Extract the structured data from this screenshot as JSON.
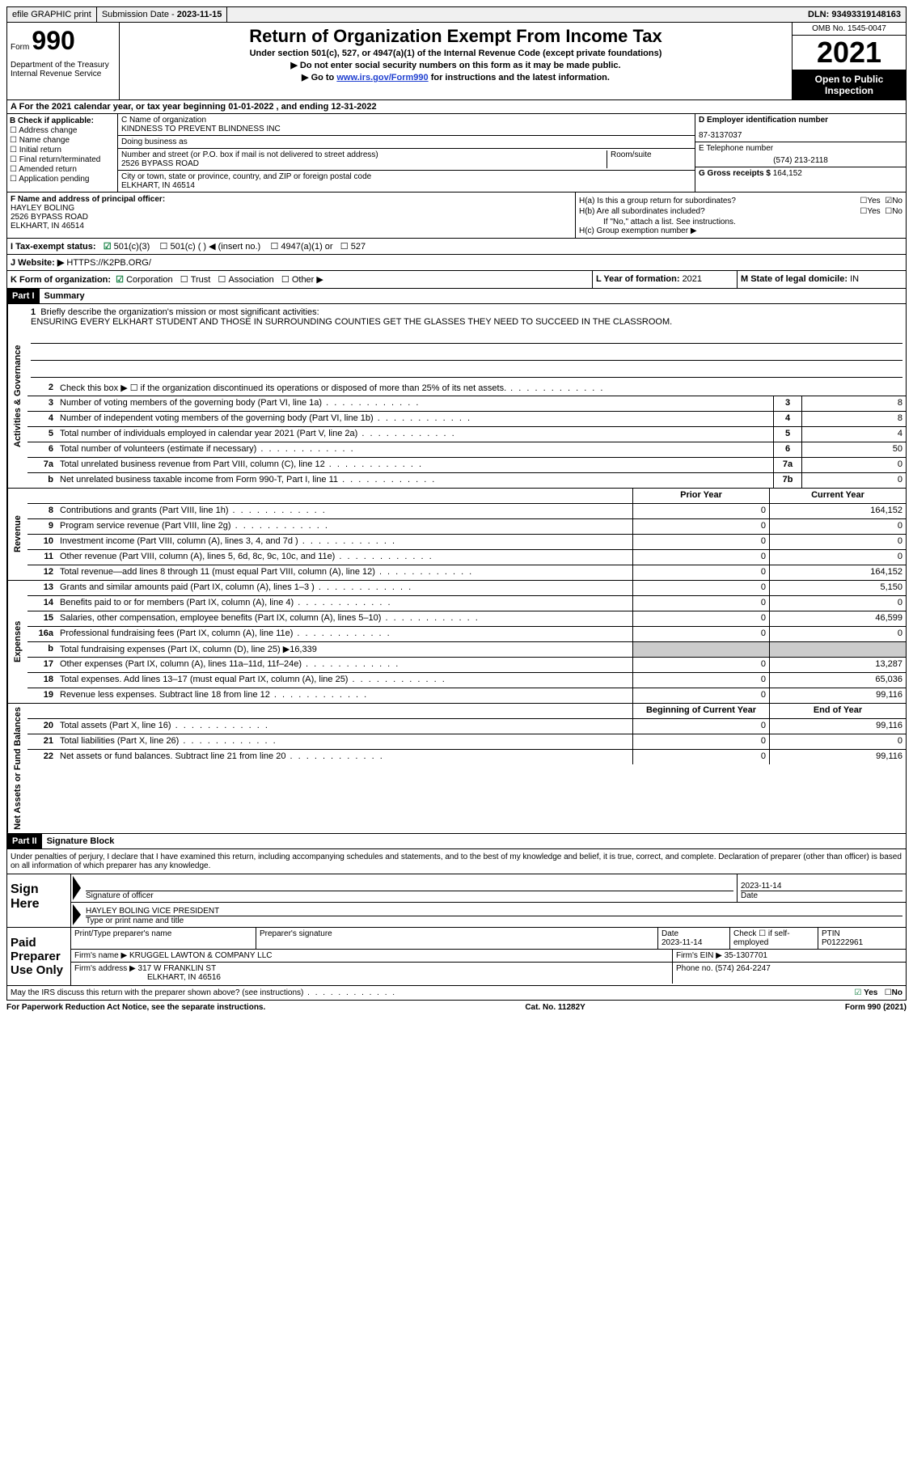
{
  "topbar": {
    "efile": "efile GRAPHIC print",
    "submission_label": "Submission Date - ",
    "submission_date": "2023-11-15",
    "dln_label": "DLN: ",
    "dln": "93493319148163"
  },
  "header": {
    "form_label": "Form",
    "form_no": "990",
    "dept": "Department of the Treasury\nInternal Revenue Service",
    "title": "Return of Organization Exempt From Income Tax",
    "subtitle1": "Under section 501(c), 527, or 4947(a)(1) of the Internal Revenue Code (except private foundations)",
    "subtitle2": "Do not enter social security numbers on this form as it may be made public.",
    "subtitle3_pre": "Go to ",
    "subtitle3_link": "www.irs.gov/Form990",
    "subtitle3_post": " for instructions and the latest information.",
    "omb": "OMB No. 1545-0047",
    "year": "2021",
    "open": "Open to Public Inspection"
  },
  "row_a": "A For the 2021 calendar year, or tax year beginning 01-01-2022  , and ending 12-31-2022",
  "col_b": {
    "label": "B Check if applicable:",
    "items": [
      "Address change",
      "Name change",
      "Initial return",
      "Final return/terminated",
      "Amended return",
      "Application pending"
    ]
  },
  "col_c": {
    "name_label": "C Name of organization",
    "name": "KINDNESS TO PREVENT BLINDNESS INC",
    "dba_label": "Doing business as",
    "dba": "",
    "street_label": "Number and street (or P.O. box if mail is not delivered to street address)",
    "street": "2526 BYPASS ROAD",
    "room_label": "Room/suite",
    "city_label": "City or town, state or province, country, and ZIP or foreign postal code",
    "city": "ELKHART, IN  46514"
  },
  "col_d": {
    "ein_label": "D Employer identification number",
    "ein": "87-3137037",
    "tel_label": "E Telephone number",
    "tel": "(574) 213-2118",
    "gross_label": "G Gross receipts $ ",
    "gross": "164,152"
  },
  "row_f": {
    "label": "F Name and address of principal officer:",
    "name": "HAYLEY BOLING",
    "street": "2526 BYPASS ROAD",
    "city": "ELKHART, IN  46514"
  },
  "row_h": {
    "ha": "H(a)  Is this a group return for subordinates?",
    "hb": "H(b)  Are all subordinates included?",
    "hb_note": "If \"No,\" attach a list. See instructions.",
    "hc": "H(c)  Group exemption number ▶",
    "yes": "Yes",
    "no": "No"
  },
  "row_i": {
    "label": "I  Tax-exempt status:",
    "opt1": "501(c)(3)",
    "opt2": "501(c) (  ) ◀ (insert no.)",
    "opt3": "4947(a)(1) or",
    "opt4": "527"
  },
  "row_j": {
    "label": "J  Website: ▶  ",
    "url": "HTTPS://K2PB.ORG/"
  },
  "row_k": {
    "label": "K Form of organization:",
    "corp": "Corporation",
    "trust": "Trust",
    "assoc": "Association",
    "other": "Other ▶"
  },
  "row_l": {
    "label": "L Year of formation: ",
    "val": "2021"
  },
  "row_m": {
    "label": "M State of legal domicile: ",
    "val": "IN"
  },
  "part1": {
    "bar": "Part I",
    "title": "Summary"
  },
  "mission": {
    "num": "1",
    "label": "Briefly describe the organization's mission or most significant activities:",
    "text": "ENSURING EVERY ELKHART STUDENT AND THOSE IN SURROUNDING COUNTIES GET THE GLASSES THEY NEED TO SUCCEED IN THE CLASSROOM."
  },
  "activities_label": "Activities & Governance",
  "revenue_label": "Revenue",
  "expenses_label": "Expenses",
  "netassets_label": "Net Assets or Fund Balances",
  "lines_top": [
    {
      "n": "2",
      "d": "Check this box ▶ ☐  if the organization discontinued its operations or disposed of more than 25% of its net assets."
    },
    {
      "n": "3",
      "d": "Number of voting members of the governing body (Part VI, line 1a)",
      "box": "3",
      "v": "8"
    },
    {
      "n": "4",
      "d": "Number of independent voting members of the governing body (Part VI, line 1b)",
      "box": "4",
      "v": "8"
    },
    {
      "n": "5",
      "d": "Total number of individuals employed in calendar year 2021 (Part V, line 2a)",
      "box": "5",
      "v": "4"
    },
    {
      "n": "6",
      "d": "Total number of volunteers (estimate if necessary)",
      "box": "6",
      "v": "50"
    },
    {
      "n": "7a",
      "d": "Total unrelated business revenue from Part VIII, column (C), line 12",
      "box": "7a",
      "v": "0"
    },
    {
      "n": "b",
      "d": "Net unrelated business taxable income from Form 990-T, Part I, line 11",
      "box": "7b",
      "v": "0"
    }
  ],
  "col_headers": {
    "prior": "Prior Year",
    "current": "Current Year",
    "beg": "Beginning of Current Year",
    "end": "End of Year"
  },
  "revenue_lines": [
    {
      "n": "8",
      "d": "Contributions and grants (Part VIII, line 1h)",
      "p": "0",
      "c": "164,152"
    },
    {
      "n": "9",
      "d": "Program service revenue (Part VIII, line 2g)",
      "p": "0",
      "c": "0"
    },
    {
      "n": "10",
      "d": "Investment income (Part VIII, column (A), lines 3, 4, and 7d )",
      "p": "0",
      "c": "0"
    },
    {
      "n": "11",
      "d": "Other revenue (Part VIII, column (A), lines 5, 6d, 8c, 9c, 10c, and 11e)",
      "p": "0",
      "c": "0"
    },
    {
      "n": "12",
      "d": "Total revenue—add lines 8 through 11 (must equal Part VIII, column (A), line 12)",
      "p": "0",
      "c": "164,152"
    }
  ],
  "expense_lines": [
    {
      "n": "13",
      "d": "Grants and similar amounts paid (Part IX, column (A), lines 1–3 )",
      "p": "0",
      "c": "5,150"
    },
    {
      "n": "14",
      "d": "Benefits paid to or for members (Part IX, column (A), line 4)",
      "p": "0",
      "c": "0"
    },
    {
      "n": "15",
      "d": "Salaries, other compensation, employee benefits (Part IX, column (A), lines 5–10)",
      "p": "0",
      "c": "46,599"
    },
    {
      "n": "16a",
      "d": "Professional fundraising fees (Part IX, column (A), line 11e)",
      "p": "0",
      "c": "0"
    },
    {
      "n": "b",
      "d": "Total fundraising expenses (Part IX, column (D), line 25) ▶16,339",
      "shaded": true
    },
    {
      "n": "17",
      "d": "Other expenses (Part IX, column (A), lines 11a–11d, 11f–24e)",
      "p": "0",
      "c": "13,287"
    },
    {
      "n": "18",
      "d": "Total expenses. Add lines 13–17 (must equal Part IX, column (A), line 25)",
      "p": "0",
      "c": "65,036"
    },
    {
      "n": "19",
      "d": "Revenue less expenses. Subtract line 18 from line 12",
      "p": "0",
      "c": "99,116"
    }
  ],
  "net_lines": [
    {
      "n": "20",
      "d": "Total assets (Part X, line 16)",
      "p": "0",
      "c": "99,116"
    },
    {
      "n": "21",
      "d": "Total liabilities (Part X, line 26)",
      "p": "0",
      "c": "0"
    },
    {
      "n": "22",
      "d": "Net assets or fund balances. Subtract line 21 from line 20",
      "p": "0",
      "c": "99,116"
    }
  ],
  "part2": {
    "bar": "Part II",
    "title": "Signature Block"
  },
  "perjury": "Under penalties of perjury, I declare that I have examined this return, including accompanying schedules and statements, and to the best of my knowledge and belief, it is true, correct, and complete. Declaration of preparer (other than officer) is based on all information of which preparer has any knowledge.",
  "sign": {
    "here": "Sign Here",
    "sig_officer": "Signature of officer",
    "date": "Date",
    "sig_date": "2023-11-14",
    "name_title": "HAYLEY BOLING  VICE PRESIDENT",
    "name_label": "Type or print name and title"
  },
  "preparer": {
    "label": "Paid Preparer Use Only",
    "print_label": "Print/Type preparer's name",
    "print_name": "",
    "sig_label": "Preparer's signature",
    "date_label": "Date",
    "date": "2023-11-14",
    "check_label": "Check ☐ if self-employed",
    "ptin_label": "PTIN",
    "ptin": "P01222961",
    "firm_name_label": "Firm's name    ▶ ",
    "firm_name": "KRUGGEL LAWTON & COMPANY LLC",
    "firm_ein_label": "Firm's EIN ▶ ",
    "firm_ein": "35-1307701",
    "firm_addr_label": "Firm's address ▶ ",
    "firm_addr": "317 W FRANKLIN ST",
    "firm_city": "ELKHART, IN  46516",
    "phone_label": "Phone no. ",
    "phone": "(574) 264-2247"
  },
  "discuss": "May the IRS discuss this return with the preparer shown above? (see instructions)",
  "footer": {
    "paperwork": "For Paperwork Reduction Act Notice, see the separate instructions.",
    "cat": "Cat. No. 11282Y",
    "form": "Form 990 (2021)"
  }
}
